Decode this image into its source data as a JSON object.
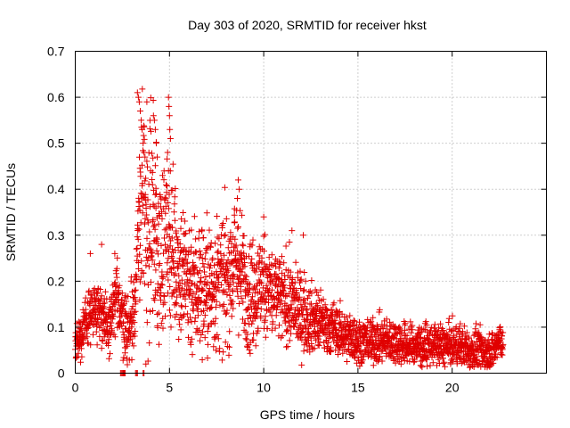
{
  "chart_data": {
    "type": "scatter",
    "title": "Day 303 of 2020, SRMTID for receiver hkst",
    "xlabel": "GPS time / hours",
    "ylabel": "SRMTID / TECUs",
    "xlim": [
      0,
      25
    ],
    "ylim": [
      0,
      0.7
    ],
    "xticks": [
      0,
      5,
      10,
      15,
      20
    ],
    "yticks": [
      0,
      0.1,
      0.2,
      0.3,
      0.4,
      0.5,
      0.6,
      0.7
    ],
    "xtick_labels": [
      "0",
      "5",
      "10",
      "15",
      "20"
    ],
    "ytick_labels": [
      "0",
      "0.1",
      "0.2",
      "0.3",
      "0.4",
      "0.5",
      "0.6",
      "0.7"
    ],
    "grid": true,
    "marker": "+",
    "color": "#e00000",
    "series": [
      {
        "name": "SRMTID",
        "trend": [
          [
            0.0,
            0.06
          ],
          [
            0.3,
            0.08
          ],
          [
            0.7,
            0.12
          ],
          [
            1.0,
            0.15
          ],
          [
            1.3,
            0.14
          ],
          [
            1.6,
            0.1
          ],
          [
            1.9,
            0.11
          ],
          [
            2.2,
            0.17
          ],
          [
            2.5,
            0.13
          ],
          [
            2.8,
            0.08
          ],
          [
            3.0,
            0.12
          ],
          [
            3.2,
            0.18
          ],
          [
            3.5,
            0.4
          ],
          [
            3.8,
            0.3
          ],
          [
            4.1,
            0.35
          ],
          [
            4.4,
            0.24
          ],
          [
            4.7,
            0.28
          ],
          [
            5.0,
            0.3
          ],
          [
            5.5,
            0.23
          ],
          [
            6.0,
            0.2
          ],
          [
            6.5,
            0.19
          ],
          [
            7.0,
            0.18
          ],
          [
            7.5,
            0.19
          ],
          [
            8.0,
            0.2
          ],
          [
            8.5,
            0.25
          ],
          [
            9.0,
            0.19
          ],
          [
            9.5,
            0.17
          ],
          [
            10.0,
            0.2
          ],
          [
            10.5,
            0.17
          ],
          [
            11.0,
            0.16
          ],
          [
            11.5,
            0.15
          ],
          [
            12.0,
            0.13
          ],
          [
            12.5,
            0.12
          ],
          [
            13.0,
            0.11
          ],
          [
            13.5,
            0.1
          ],
          [
            14.0,
            0.09
          ],
          [
            14.5,
            0.08
          ],
          [
            15.0,
            0.07
          ],
          [
            15.5,
            0.07
          ],
          [
            16.0,
            0.07
          ],
          [
            16.5,
            0.07
          ],
          [
            17.0,
            0.07
          ],
          [
            17.5,
            0.06
          ],
          [
            18.0,
            0.06
          ],
          [
            18.5,
            0.06
          ],
          [
            19.0,
            0.06
          ],
          [
            19.5,
            0.06
          ],
          [
            20.0,
            0.06
          ],
          [
            20.5,
            0.06
          ],
          [
            21.0,
            0.05
          ],
          [
            21.5,
            0.05
          ],
          [
            22.0,
            0.04
          ],
          [
            22.5,
            0.07
          ],
          [
            22.7,
            0.07
          ]
        ],
        "spread": [
          [
            0.0,
            0.025
          ],
          [
            2.0,
            0.03
          ],
          [
            3.3,
            0.05
          ],
          [
            3.5,
            0.12
          ],
          [
            4.3,
            0.1
          ],
          [
            5.0,
            0.08
          ],
          [
            8.0,
            0.07
          ],
          [
            10.5,
            0.05
          ],
          [
            12.0,
            0.04
          ],
          [
            14.0,
            0.025
          ],
          [
            22.7,
            0.02
          ]
        ],
        "points_per_hour": 120,
        "extra_points": [
          [
            3.3,
            0.61
          ],
          [
            3.35,
            0.6
          ],
          [
            3.4,
            0.59
          ],
          [
            3.45,
            0.57
          ],
          [
            3.5,
            0.55
          ],
          [
            3.55,
            0.53
          ],
          [
            3.6,
            0.5
          ],
          [
            3.65,
            0.48
          ],
          [
            3.7,
            0.47
          ],
          [
            3.8,
            0.59
          ],
          [
            4.15,
            0.56
          ],
          [
            4.2,
            0.55
          ],
          [
            4.25,
            0.53
          ],
          [
            4.3,
            0.5
          ],
          [
            4.35,
            0.47
          ],
          [
            4.95,
            0.6
          ],
          [
            4.97,
            0.58
          ],
          [
            5.0,
            0.56
          ],
          [
            5.02,
            0.53
          ],
          [
            5.05,
            0.51
          ],
          [
            4.9,
            0.48
          ],
          [
            8.65,
            0.42
          ],
          [
            8.7,
            0.4
          ],
          [
            8.6,
            0.38
          ],
          [
            10.0,
            0.34
          ],
          [
            11.5,
            0.31
          ],
          [
            12.1,
            0.3
          ],
          [
            0.8,
            0.26
          ],
          [
            1.4,
            0.28
          ],
          [
            2.1,
            0.26
          ],
          [
            3.75,
            0.02
          ],
          [
            4.3,
            0.39
          ],
          [
            4.0,
            0.44
          ],
          [
            4.1,
            0.41
          ]
        ],
        "zero_points": [
          2.4,
          2.45,
          2.5,
          2.55,
          2.6,
          2.65,
          3.2,
          3.25,
          3.3,
          3.6,
          3.65
        ]
      }
    ]
  }
}
